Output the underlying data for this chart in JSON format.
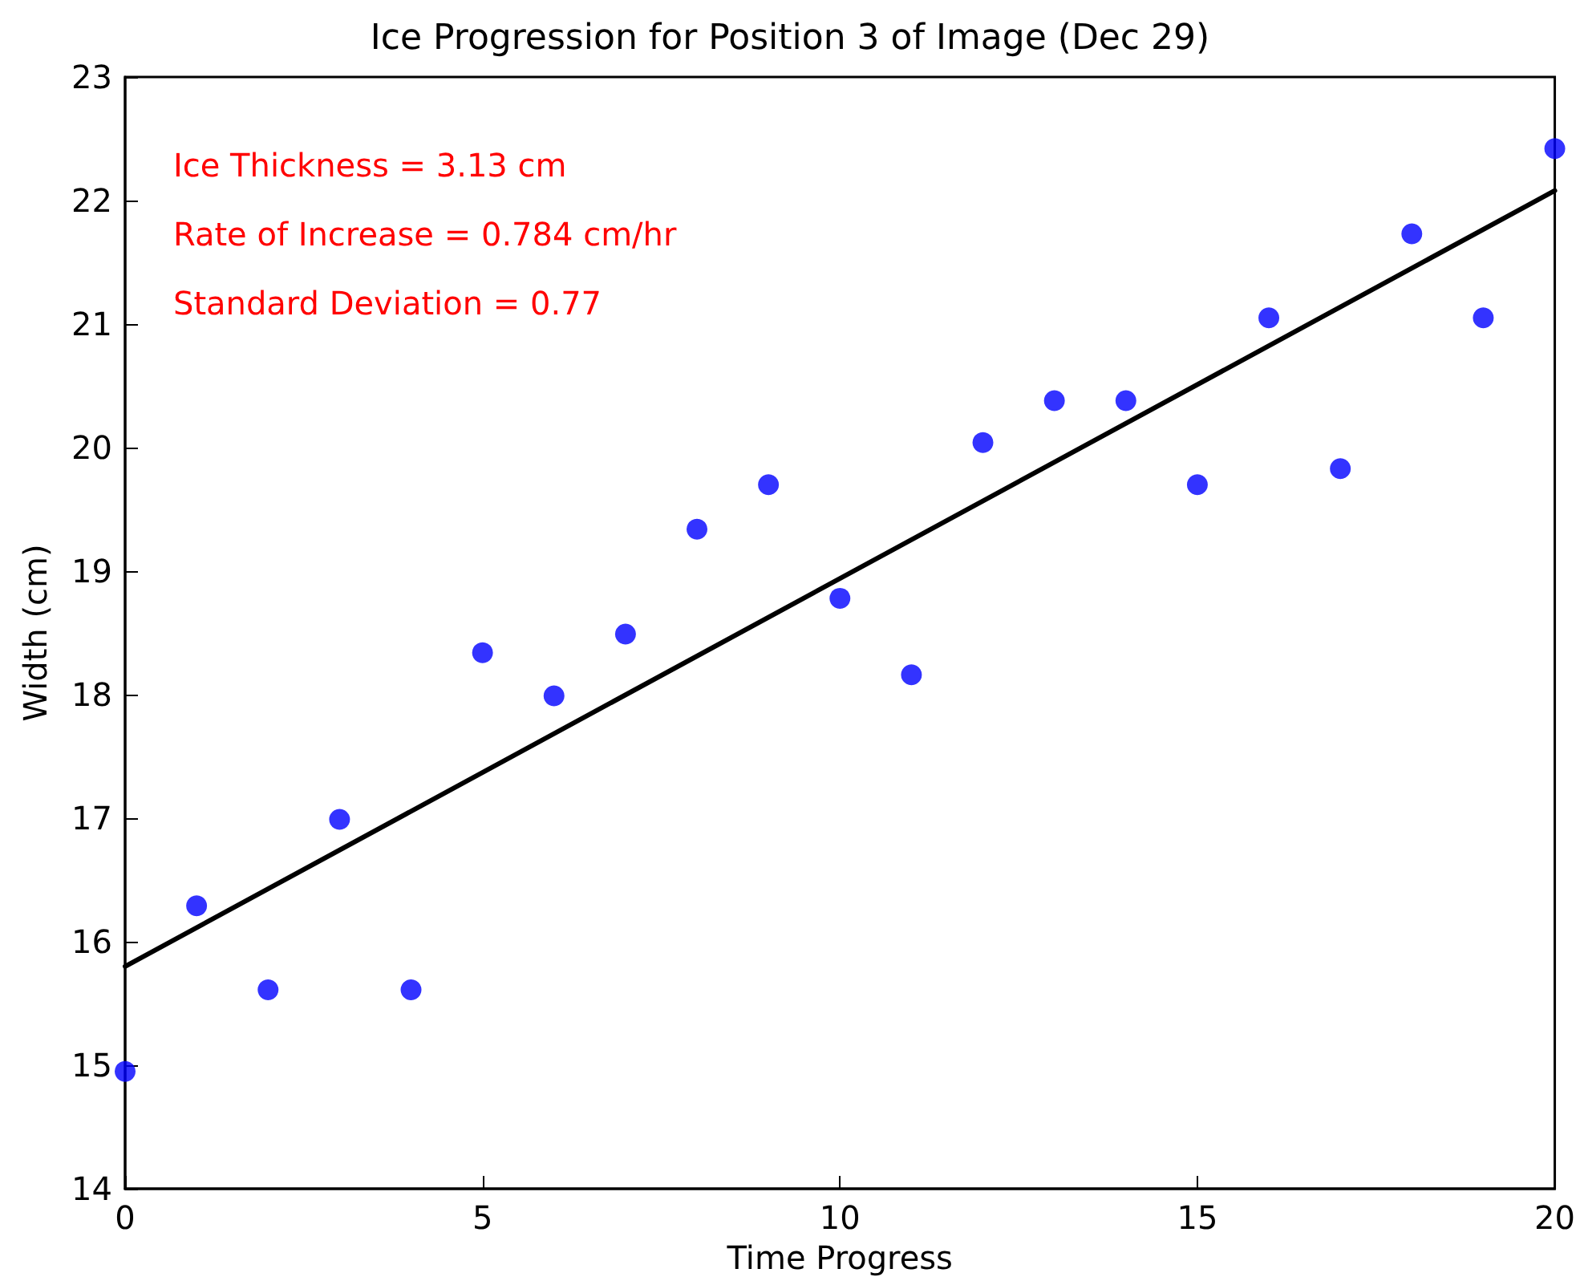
{
  "chart_data": {
    "type": "scatter",
    "title": "Ice Progression for Position 3 of Image (Dec 29)",
    "xlabel": "Time Progress",
    "ylabel": "Width (cm)",
    "annotations": [
      "Ice Thickness = 3.13 cm",
      "Rate of Increase = 0.784 cm/hr",
      "Standard Deviation = 0.77"
    ],
    "series": [
      {
        "type": "scatter",
        "color": "#0000ff",
        "marker": "circle",
        "x": [
          0,
          1,
          2,
          3,
          4,
          5,
          6,
          7,
          8,
          9,
          10,
          11,
          12,
          13,
          14,
          15,
          16,
          17,
          18,
          19,
          20
        ],
        "values": [
          14.95,
          16.29,
          15.61,
          16.99,
          15.61,
          18.34,
          17.99,
          18.49,
          19.34,
          19.7,
          18.78,
          18.16,
          20.04,
          20.38,
          20.38,
          19.7,
          21.05,
          19.83,
          21.73,
          21.05,
          22.42
        ]
      },
      {
        "type": "line",
        "color": "#000000",
        "marker": "none",
        "line_style": "solid",
        "x": [
          0,
          20
        ],
        "values": [
          15.8,
          22.08
        ]
      }
    ],
    "xlim": [
      0,
      20
    ],
    "xticks": [
      0,
      5,
      10,
      15,
      20
    ],
    "ylim": [
      14,
      23
    ],
    "yticks": [
      14,
      15,
      16,
      17,
      18,
      19,
      20,
      21,
      22,
      23
    ]
  }
}
